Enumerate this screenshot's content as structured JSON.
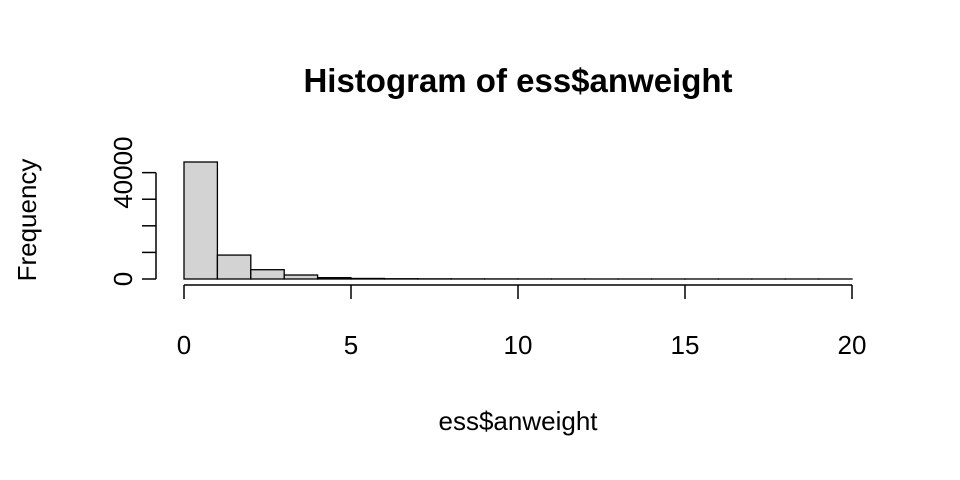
{
  "chart_data": {
    "type": "bar",
    "title": "Histogram of ess$anweight",
    "xlabel": "ess$anweight",
    "ylabel": "Frequency",
    "bins": [
      {
        "from": 0,
        "to": 1,
        "count": 44000
      },
      {
        "from": 1,
        "to": 2,
        "count": 9000
      },
      {
        "from": 2,
        "to": 3,
        "count": 3500
      },
      {
        "from": 3,
        "to": 4,
        "count": 1500
      },
      {
        "from": 4,
        "to": 5,
        "count": 500
      },
      {
        "from": 5,
        "to": 6,
        "count": 200
      },
      {
        "from": 6,
        "to": 7,
        "count": 100
      },
      {
        "from": 7,
        "to": 8,
        "count": 60
      },
      {
        "from": 8,
        "to": 9,
        "count": 40
      },
      {
        "from": 9,
        "to": 10,
        "count": 30
      },
      {
        "from": 10,
        "to": 11,
        "count": 20
      },
      {
        "from": 11,
        "to": 12,
        "count": 15
      },
      {
        "from": 12,
        "to": 13,
        "count": 10
      },
      {
        "from": 13,
        "to": 14,
        "count": 8
      },
      {
        "from": 14,
        "to": 15,
        "count": 6
      },
      {
        "from": 15,
        "to": 16,
        "count": 5
      },
      {
        "from": 16,
        "to": 17,
        "count": 4
      },
      {
        "from": 17,
        "to": 18,
        "count": 3
      },
      {
        "from": 18,
        "to": 19,
        "count": 2
      },
      {
        "from": 19,
        "to": 20,
        "count": 2
      }
    ],
    "xlim": [
      0,
      20
    ],
    "ylim": [
      0,
      44000
    ],
    "x_ticks": [
      0,
      5,
      10,
      15,
      20
    ],
    "x_tick_labels": [
      "0",
      "5",
      "10",
      "15",
      "20"
    ],
    "y_ticks": [
      0,
      10000,
      20000,
      30000,
      40000
    ],
    "y_tick_labels": [
      "0",
      "",
      "",
      "",
      "40000"
    ],
    "bar_fill": "#d3d3d3",
    "bar_stroke": "#000000",
    "grid": false
  }
}
